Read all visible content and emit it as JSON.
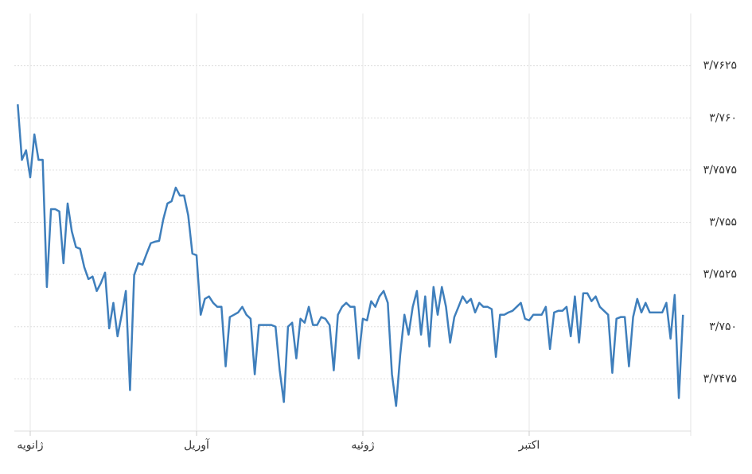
{
  "chart_data": {
    "type": "line",
    "categories": [
      null,
      null,
      null,
      "ژانویه",
      null,
      null,
      null,
      null,
      null,
      null,
      null,
      null,
      null,
      null,
      null,
      null,
      null,
      null,
      null,
      null,
      null,
      null,
      null,
      null,
      null,
      null,
      null,
      null,
      null,
      null,
      null,
      null,
      null,
      null,
      null,
      null,
      null,
      null,
      null,
      null,
      null,
      null,
      null,
      "آوریل",
      null,
      null,
      null,
      null,
      null,
      null,
      null,
      null,
      null,
      null,
      null,
      null,
      null,
      null,
      null,
      null,
      null,
      null,
      null,
      null,
      null,
      null,
      null,
      null,
      null,
      null,
      null,
      null,
      null,
      null,
      null,
      null,
      null,
      null,
      null,
      null,
      null,
      null,
      null,
      "ژوئیه",
      null,
      null,
      null,
      null,
      null,
      null,
      null,
      null,
      null,
      null,
      null,
      null,
      null,
      null,
      null,
      null,
      null,
      null,
      null,
      null,
      null,
      null,
      null,
      null,
      null,
      null,
      null,
      null,
      null,
      null,
      null,
      null,
      null,
      null,
      null,
      null,
      null,
      null,
      null,
      "اکتبر",
      null,
      null,
      null,
      null,
      null,
      null,
      null,
      null,
      null,
      null,
      null,
      null,
      null,
      null,
      null,
      null,
      null,
      null,
      null,
      null,
      null,
      null,
      null,
      null,
      null,
      null,
      null,
      null,
      null,
      null,
      null,
      null,
      null,
      null,
      null,
      null,
      null
    ],
    "values": [
      3.76065,
      3.75799,
      3.75845,
      3.75715,
      3.75921,
      3.75799,
      3.75799,
      3.7519,
      3.75563,
      3.75563,
      3.75552,
      3.75304,
      3.7559,
      3.75457,
      3.75381,
      3.75373,
      3.75285,
      3.75228,
      3.7524,
      3.75171,
      3.75209,
      3.75259,
      3.74992,
      3.75114,
      3.74954,
      3.75057,
      3.75171,
      3.74696,
      3.75247,
      3.75304,
      3.75297,
      3.7535,
      3.754,
      3.75407,
      3.75411,
      3.75514,
      3.7559,
      3.75601,
      3.75666,
      3.75628,
      3.75628,
      3.75533,
      3.7535,
      3.75342,
      3.75057,
      3.75133,
      3.75145,
      3.75114,
      3.75095,
      3.75095,
      3.7481,
      3.75046,
      3.75057,
      3.75068,
      3.75095,
      3.75057,
      3.75038,
      3.74772,
      3.75008,
      3.75008,
      3.75008,
      3.75008,
      3.75,
      3.74791,
      3.74639,
      3.75,
      3.75019,
      3.74848,
      3.75038,
      3.75019,
      3.75095,
      3.75008,
      3.75008,
      3.75046,
      3.75038,
      3.75008,
      3.74791,
      3.75057,
      3.75095,
      3.75114,
      3.75095,
      3.75095,
      3.74848,
      3.75038,
      3.7503,
      3.75122,
      3.75095,
      3.75145,
      3.75171,
      3.75114,
      3.74772,
      3.7462,
      3.74867,
      3.75057,
      3.74962,
      3.75095,
      3.75171,
      3.74962,
      3.75145,
      3.74905,
      3.7519,
      3.75057,
      3.7519,
      3.75095,
      3.74924,
      3.75046,
      3.75095,
      3.75145,
      3.75114,
      3.75133,
      3.75068,
      3.75114,
      3.75095,
      3.75095,
      3.75084,
      3.74855,
      3.75057,
      3.75057,
      3.75068,
      3.75076,
      3.75095,
      3.75114,
      3.75038,
      3.7503,
      3.75057,
      3.75057,
      3.75057,
      3.75095,
      3.74893,
      3.75068,
      3.75076,
      3.75076,
      3.75095,
      3.74954,
      3.75145,
      3.74924,
      3.7516,
      3.7516,
      3.75122,
      3.75145,
      3.75095,
      3.75076,
      3.75057,
      3.74779,
      3.75038,
      3.75046,
      3.75046,
      3.7481,
      3.75046,
      3.75133,
      3.75068,
      3.75114,
      3.75068,
      3.75068,
      3.75068,
      3.75068,
      3.75114,
      3.74943,
      3.75152,
      3.74658,
      3.75057
    ],
    "color": "#3f7fbc",
    "ylim": [
      3.745,
      3.765
    ],
    "yticks": [
      {
        "value": 3.7475,
        "label": "۳/۷۴۷۵"
      },
      {
        "value": 3.75,
        "label": "۳/۷۵۰"
      },
      {
        "value": 3.7525,
        "label": "۳/۷۵۲۵"
      },
      {
        "value": 3.755,
        "label": "۳/۷۵۵"
      },
      {
        "value": 3.7575,
        "label": "۳/۷۵۷۵"
      },
      {
        "value": 3.76,
        "label": "۳/۷۶۰"
      },
      {
        "value": 3.7625,
        "label": "۳/۷۶۲۵"
      }
    ],
    "grid": true
  }
}
